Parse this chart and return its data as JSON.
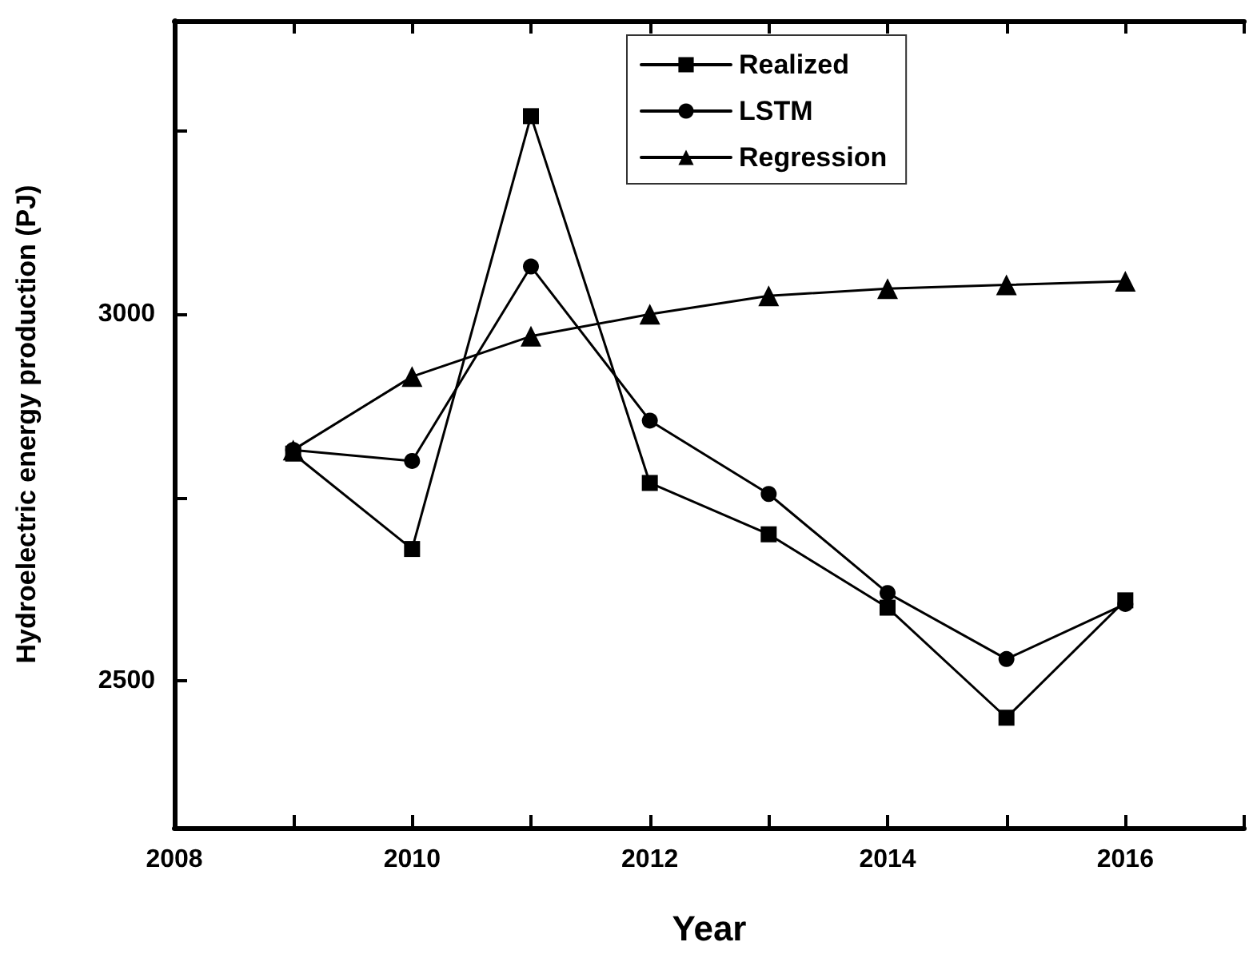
{
  "chart_data": {
    "type": "line",
    "xlabel": "Year",
    "ylabel": "Hydroelectric energy production (PJ)",
    "x": [
      2009,
      2010,
      2011,
      2012,
      2013,
      2014,
      2015,
      2016
    ],
    "series": [
      {
        "name": "Realized",
        "color": "#000000",
        "marker": "square",
        "values": [
          2810,
          2680,
          3270,
          2770,
          2700,
          2600,
          2450,
          2610
        ]
      },
      {
        "name": "LSTM",
        "color": "#000000",
        "marker": "circle",
        "values": [
          2815,
          2800,
          3065,
          2855,
          2755,
          2620,
          2530,
          2605
        ]
      },
      {
        "name": "Regression",
        "color": "#000000",
        "marker": "triangle",
        "values": [
          2815,
          2915,
          2970,
          3000,
          3025,
          3035,
          3040,
          3045
        ]
      }
    ],
    "xlim": [
      2008,
      2017
    ],
    "xticks": [
      2008,
      {
        "value": 2009,
        "label": null
      },
      2010,
      {
        "value": 2011,
        "label": null
      },
      2012,
      {
        "value": 2013,
        "label": null
      },
      2014,
      {
        "value": 2015,
        "label": null
      },
      2016,
      {
        "value": 2017,
        "label": null
      }
    ],
    "ylim": [
      2300,
      3400
    ],
    "yticks": [
      2500,
      {
        "value": 2750,
        "label": null
      },
      3000,
      {
        "value": 3250,
        "label": null
      }
    ],
    "legend": "top",
    "grid": false,
    "line_style": "solid"
  }
}
